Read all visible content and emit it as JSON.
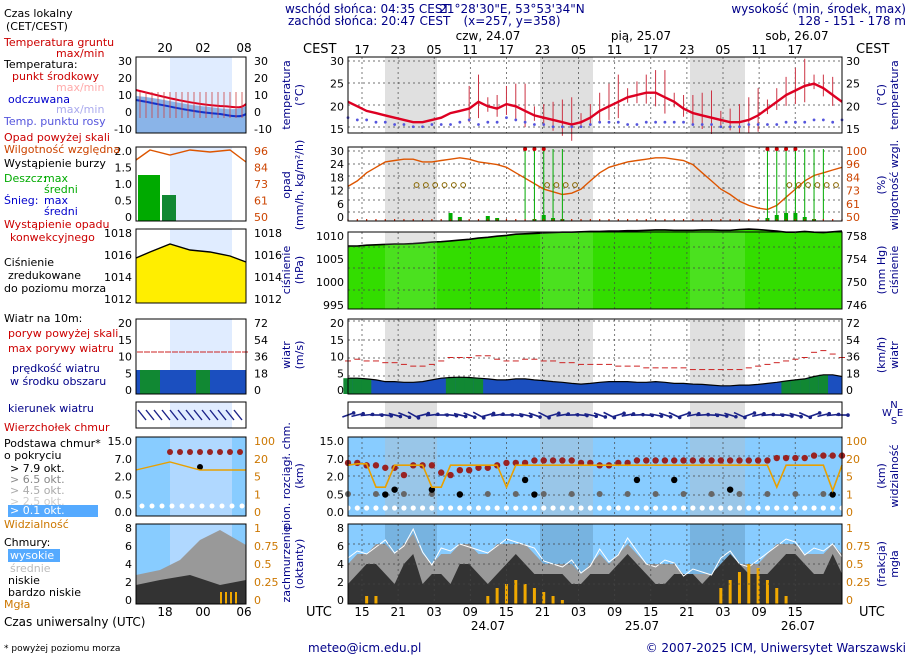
{
  "header": {
    "sunrise": "wschód słońca: 04:35 CEST",
    "sunset": "zachód słońca: 20:47 CEST",
    "coords": "21°28'30\"E, 53°53'34\"N",
    "grid": "(x=257, y=358)",
    "alt_title": "wysokość (min, środek, max)",
    "alt_values": "128 - 151 - 178 m",
    "tz_top": "CEST",
    "tz_bottom": "UTC",
    "days_top": [
      "czw, 24.07",
      "pią, 25.07",
      "sob, 26.07"
    ],
    "days_bottom": [
      "24.07",
      "25.07",
      "26.07"
    ],
    "hours_top": [
      "17",
      "23",
      "05",
      "11",
      "17",
      "23",
      "05",
      "11",
      "17",
      "23",
      "05",
      "11",
      "17"
    ],
    "hours_bottom": [
      "15",
      "21",
      "03",
      "09",
      "15",
      "21",
      "03",
      "09",
      "15",
      "21",
      "03",
      "09",
      "15"
    ],
    "legend_hours_top": [
      "20",
      "02",
      "08"
    ],
    "legend_hours_bottom": [
      "18",
      "00",
      "06"
    ]
  },
  "legend": {
    "local_time": "Czas lokalny",
    "local_time2": "(CET/CEST)",
    "soil_temp": "Temperatura gruntu",
    "soil_temp2": "max/min",
    "temp_title": "Temperatura:",
    "dew_mid": "punkt środkowy",
    "dew_max": "max/min",
    "perceived": "odczuwana",
    "perceived_max": "max/min",
    "dewpoint": "Temp. punktu rosy",
    "precip_above": "Opad powyżej skali",
    "rh": "Wilgotność względna",
    "storm": "Wystąpienie burzy",
    "rain": "Deszcz:",
    "rain_max": "max",
    "rain_mean": "średni",
    "snow": "Śnieg:",
    "snow_max": "max",
    "snow_mean": "średni",
    "conv1": "Wystąpienie opadu",
    "conv2": "konwekcyjnego",
    "pres1": "Ciśnienie",
    "pres2": "zredukowane",
    "pres3": "do poziomu morza",
    "wind_title": "Wiatr na 10m:",
    "gust_above": "poryw powyżej skali",
    "gust_max": "max porywy wiatru",
    "wind_mean1": "prędkość wiatru",
    "wind_mean2": "w środku obszaru",
    "wind_dir": "kierunek wiatru",
    "cloud_top": "Wierzchołek chmur",
    "cloud_base1": "Podstawa chmur*",
    "cloud_base2": "o pokryciu",
    "okt79": "> 7.9 okt.",
    "okt65": "> 6.5 okt.",
    "okt45": "> 4.5 okt.",
    "okt25": "> 2.5 okt.",
    "okt01": "> 0.1 okt.",
    "visibility": "Widzialność",
    "clouds": "Chmury:",
    "high": "wysokie",
    "mid": "średnie",
    "low": "niskie",
    "vlow": "bardzo niskie",
    "fog": "Mgła",
    "utc": "Czas uniwersalny (UTC)",
    "footnote": "* powyżej poziomu morza"
  },
  "axes": {
    "temp_left": "temperatura",
    "temp_left2": "(°C)",
    "temp_right": "(°C)",
    "temp_right2": "temperatura",
    "precip_left": "opad",
    "precip_left2": "(mm/h, kg/m²/h)",
    "precip_right": "(%)",
    "precip_right2": "wilgotność wzgl.",
    "pres_left": "ciśnienie",
    "pres_left2": "(hPa)",
    "pres_right": "(mm Hg)",
    "pres_right2": "ciśnienie",
    "wind_left": "wiatr",
    "wind_left2": "(m/s)",
    "wind_right": "(km/h)",
    "wind_right2": "wiatr",
    "cloud_left": "pion. rozciągł. chm.",
    "cloud_left2": "(km)",
    "cloud_right": "(km)",
    "cloud_right2": "widzialność",
    "cov_left": "zachmurzenie",
    "cov_left2": "(oktanty)",
    "cov_right": "(frakcja)",
    "cov_right2": "mgła",
    "wind_ne_n": "N",
    "wind_ne_w": "W",
    "wind_ne_e": "E",
    "wind_ne_s": "S"
  },
  "ticks": {
    "temp_left": [
      "30",
      "25",
      "20",
      "15"
    ],
    "temp_right": [
      "30",
      "25",
      "20",
      "15"
    ],
    "precip_left": [
      "30",
      "24",
      "18",
      "12",
      "6",
      "0"
    ],
    "precip_right": [
      "100",
      "96",
      "84",
      "73",
      "61",
      "50"
    ],
    "pres_left": [
      "1010",
      "1005",
      "1000",
      "995"
    ],
    "pres_right": [
      "758",
      "754",
      "750",
      "746"
    ],
    "wind_left": [
      "20",
      "15",
      "10",
      "5",
      "0"
    ],
    "wind_right": [
      "72",
      "54",
      "36",
      "18",
      "0"
    ],
    "cloud_left": [
      "15.0",
      "7.0",
      "2.0",
      "0.5",
      "0.0"
    ],
    "cloud_right": [
      "100",
      "20",
      "5",
      "1",
      "0"
    ],
    "cov_left": [
      "8",
      "6",
      "4",
      "2",
      "0"
    ],
    "cov_right": [
      "1",
      "0.75",
      "0.5",
      "0.25",
      "0"
    ],
    "leg_temp_left": [
      "30",
      "20",
      "10",
      "0",
      "-10"
    ],
    "leg_temp_right": [
      "30",
      "20",
      "10",
      "0",
      "-10"
    ],
    "leg_precip_left": [
      "2.0",
      "1.5",
      "1.0",
      "0.5",
      "0"
    ],
    "leg_precip_right": [
      "96",
      "84",
      "73",
      "61",
      "50"
    ],
    "leg_pres_left": [
      "1018",
      "1016",
      "1014",
      "1012"
    ],
    "leg_pres_right": [
      "1018",
      "1016",
      "1014",
      "1012"
    ],
    "leg_wind_left": [
      "20",
      "15",
      "10",
      "5",
      "0"
    ],
    "leg_wind_right": [
      "72",
      "54",
      "36",
      "18",
      "0"
    ],
    "leg_cloud_left": [
      "15.0",
      "7.0",
      "2.0",
      "0.5",
      "0.0"
    ],
    "leg_cloud_right": [
      "100",
      "20",
      "5",
      "1",
      "0"
    ],
    "leg_cov_left": [
      "8",
      "6",
      "4",
      "2",
      "0"
    ],
    "leg_cov_right": [
      "1",
      "0.75",
      "0.5",
      "0.25",
      "0"
    ]
  },
  "footer": {
    "email": "meteo@icm.edu.pl",
    "copyright": "© 2007-2025 ICM, Uniwersytet Warszawski"
  },
  "colors": {
    "temp": "#dd0022",
    "dew": "#5555dd",
    "rh": "#dd5500",
    "rain": "#00aa00",
    "storm": "#cc0000",
    "pressure": "#33dd00",
    "wind": "#2277dd",
    "gust": "#cc2222",
    "sky": "#88ccff",
    "night": "#d8d8d8",
    "accent_orange": "#e8a000",
    "navy": "#000088"
  },
  "chart_data": [
    {
      "type": "line",
      "name": "temperature",
      "x_hours_utc_start": "15",
      "values_utc": [
        21,
        20,
        19,
        18.5,
        18,
        17.5,
        17,
        16.5,
        16.5,
        17,
        17.5,
        18.5,
        19,
        19.5,
        21,
        20,
        19.5,
        20.5,
        20,
        19,
        18,
        17.5,
        17,
        16.5,
        16,
        16.5,
        17.5,
        19,
        20,
        21,
        22,
        22.5,
        23,
        23,
        22,
        21,
        19.5,
        18.5,
        18,
        17.5,
        17,
        16.5,
        16.5,
        17,
        18,
        19.5,
        21,
        22.5,
        23.5,
        24.5,
        25,
        24,
        22.5,
        21
      ],
      "dewpoint_utc": [
        17.5,
        17,
        17,
        16.5,
        16.5,
        16,
        16,
        15.5,
        15.5,
        16,
        16,
        16,
        16.5,
        17,
        16,
        16.5,
        16.5,
        17.5,
        17,
        16.5,
        16,
        16,
        15.5,
        15.5,
        15.5,
        15.5,
        16,
        16.5,
        16.5,
        16.5,
        16,
        16,
        16.5,
        16.5,
        16.5,
        16.5,
        16.5,
        16,
        16,
        16,
        15.5,
        15.5,
        15.5,
        16,
        16,
        16,
        16,
        16.5,
        16.5,
        16.5,
        17,
        17,
        16.5,
        17
      ],
      "ylim": [
        13,
        31
      ]
    },
    {
      "type": "line",
      "name": "relative humidity",
      "rh_percent": [
        74,
        78,
        84,
        88,
        92,
        93,
        94,
        94,
        92,
        92,
        93,
        94,
        95,
        94,
        92,
        91,
        90,
        88,
        84,
        80,
        76,
        72,
        70,
        68,
        69,
        72,
        78,
        84,
        88,
        90,
        92,
        93,
        94,
        95,
        95,
        94,
        93,
        90,
        84,
        78,
        72,
        68,
        63,
        60,
        58,
        57,
        60,
        66,
        72,
        78,
        82,
        84,
        86,
        88
      ],
      "ylim": [
        50,
        100
      ]
    },
    {
      "type": "area",
      "name": "sea level pressure",
      "hpa": [
        1010,
        1010,
        1010.2,
        1010.3,
        1010.4,
        1010.5,
        1010.5,
        1010.6,
        1010.8,
        1011,
        1011.1,
        1011.3,
        1011.5,
        1011.7,
        1012,
        1012.2,
        1012.5,
        1012.7,
        1013,
        1013.1,
        1013.2,
        1013.3,
        1013.4,
        1013.5,
        1013.5,
        1013.6,
        1013.7,
        1013.7,
        1013.8,
        1013.8,
        1013.9,
        1013.9,
        1014,
        1014.1,
        1014.1,
        1014,
        1014,
        1014,
        1014.1,
        1014.1,
        1014,
        1014,
        1014.2,
        1014.3,
        1014.2,
        1014,
        1013.8,
        1013.5,
        1013.5,
        1013.7,
        1013.5,
        1013.4,
        1013.6,
        1013.8
      ],
      "ylim": [
        995,
        1014
      ]
    },
    {
      "type": "line",
      "name": "wind",
      "mean_ms": [
        4,
        4,
        3.8,
        3.5,
        3,
        3,
        2.8,
        2.8,
        3,
        3.5,
        4,
        4.2,
        4.3,
        4.2,
        4,
        3.8,
        3.5,
        3.5,
        3.8,
        3.8,
        3.5,
        3.3,
        3,
        2.8,
        2.5,
        2.3,
        2.5,
        2.8,
        3,
        3,
        3,
        2.8,
        2.8,
        3,
        2.8,
        2.5,
        2.5,
        2.3,
        2.2,
        2,
        1.8,
        1.8,
        2,
        2,
        2.2,
        2.5,
        2.8,
        3.2,
        3.5,
        3.8,
        4.5,
        5,
        5,
        4.5
      ],
      "gust_ms": [
        9,
        9.5,
        9,
        9,
        8.5,
        8.5,
        8,
        7.5,
        7.5,
        8,
        9,
        10,
        10,
        10,
        10.5,
        10.5,
        9.5,
        9,
        9,
        9.5,
        9.5,
        9,
        9,
        8.5,
        8.5,
        8,
        8,
        8,
        8,
        7.5,
        7.5,
        7.5,
        7,
        7,
        7,
        7,
        7,
        6.5,
        6.5,
        6.5,
        6.5,
        6.5,
        6.5,
        7,
        7.5,
        8,
        8.5,
        9,
        9.5,
        10,
        11.5,
        12,
        11,
        10
      ],
      "ylim": [
        0,
        20
      ]
    },
    {
      "type": "scatter",
      "name": "cloud base / top",
      "cloud_top_km": [
        10.5,
        10.5,
        10,
        10,
        9.5,
        9.5,
        8,
        10,
        10,
        10,
        8.5,
        8,
        9,
        9,
        9.5,
        9.5,
        10,
        10.5,
        10.5,
        10.5,
        11,
        11,
        11,
        11,
        11,
        10.5,
        10.5,
        10,
        10,
        10.5,
        10.5,
        11,
        11,
        11,
        11,
        11,
        11,
        11,
        11,
        11,
        11,
        11,
        11,
        11,
        11,
        11,
        11.5,
        11.5,
        11.5,
        11.5,
        12,
        12,
        12,
        12
      ],
      "visibility_km": [
        20,
        22,
        22,
        4,
        4,
        20,
        20,
        20,
        20,
        4,
        4,
        20,
        20,
        20,
        20,
        20,
        20,
        4,
        20,
        20,
        20,
        20,
        20,
        20,
        20,
        20,
        20,
        20,
        20,
        20,
        20,
        20,
        20,
        20,
        20,
        20,
        20,
        20,
        20,
        20,
        20,
        20,
        20,
        20,
        20,
        20,
        4,
        20,
        20,
        20,
        20,
        20,
        3,
        20
      ],
      "ylim_km": [
        0,
        15
      ]
    },
    {
      "type": "area",
      "name": "cloud cover",
      "low_okt": [
        2,
        3,
        4,
        4,
        3,
        2,
        4,
        5,
        2,
        3,
        3,
        2,
        4,
        4,
        3,
        2,
        3,
        4,
        5,
        4,
        3,
        3,
        3,
        3,
        2,
        2,
        3,
        3,
        3,
        4,
        5,
        4,
        3,
        2,
        2,
        3,
        3,
        3,
        2,
        3,
        4,
        5,
        4,
        3,
        3,
        3,
        4,
        5,
        5,
        4,
        3,
        3,
        5,
        3
      ],
      "mid_okt": [
        4,
        5,
        5,
        6,
        6,
        5,
        6,
        7,
        5,
        4,
        5,
        5,
        6,
        6,
        5,
        5,
        6,
        6,
        6,
        6,
        5,
        4,
        4,
        4,
        4,
        3,
        4,
        5,
        4,
        5,
        6,
        5,
        4,
        4,
        4,
        4,
        3,
        3,
        3,
        3,
        4,
        5,
        4,
        4,
        4,
        5,
        6,
        6,
        6,
        5,
        5,
        5,
        6,
        5
      ],
      "fog_fraction": [
        0,
        0,
        0.1,
        0.1,
        0,
        0,
        0,
        0,
        0,
        0,
        0,
        0,
        0,
        0,
        0,
        0.1,
        0.2,
        0.25,
        0.3,
        0.25,
        0.2,
        0.15,
        0.1,
        0.05,
        0,
        0,
        0,
        0,
        0,
        0,
        0,
        0,
        0,
        0,
        0,
        0,
        0,
        0,
        0,
        0,
        0.2,
        0.3,
        0.4,
        0.5,
        0.45,
        0.3,
        0.2,
        0.1,
        0,
        0,
        0,
        0,
        0,
        0
      ],
      "ylim": [
        0,
        8
      ]
    }
  ]
}
